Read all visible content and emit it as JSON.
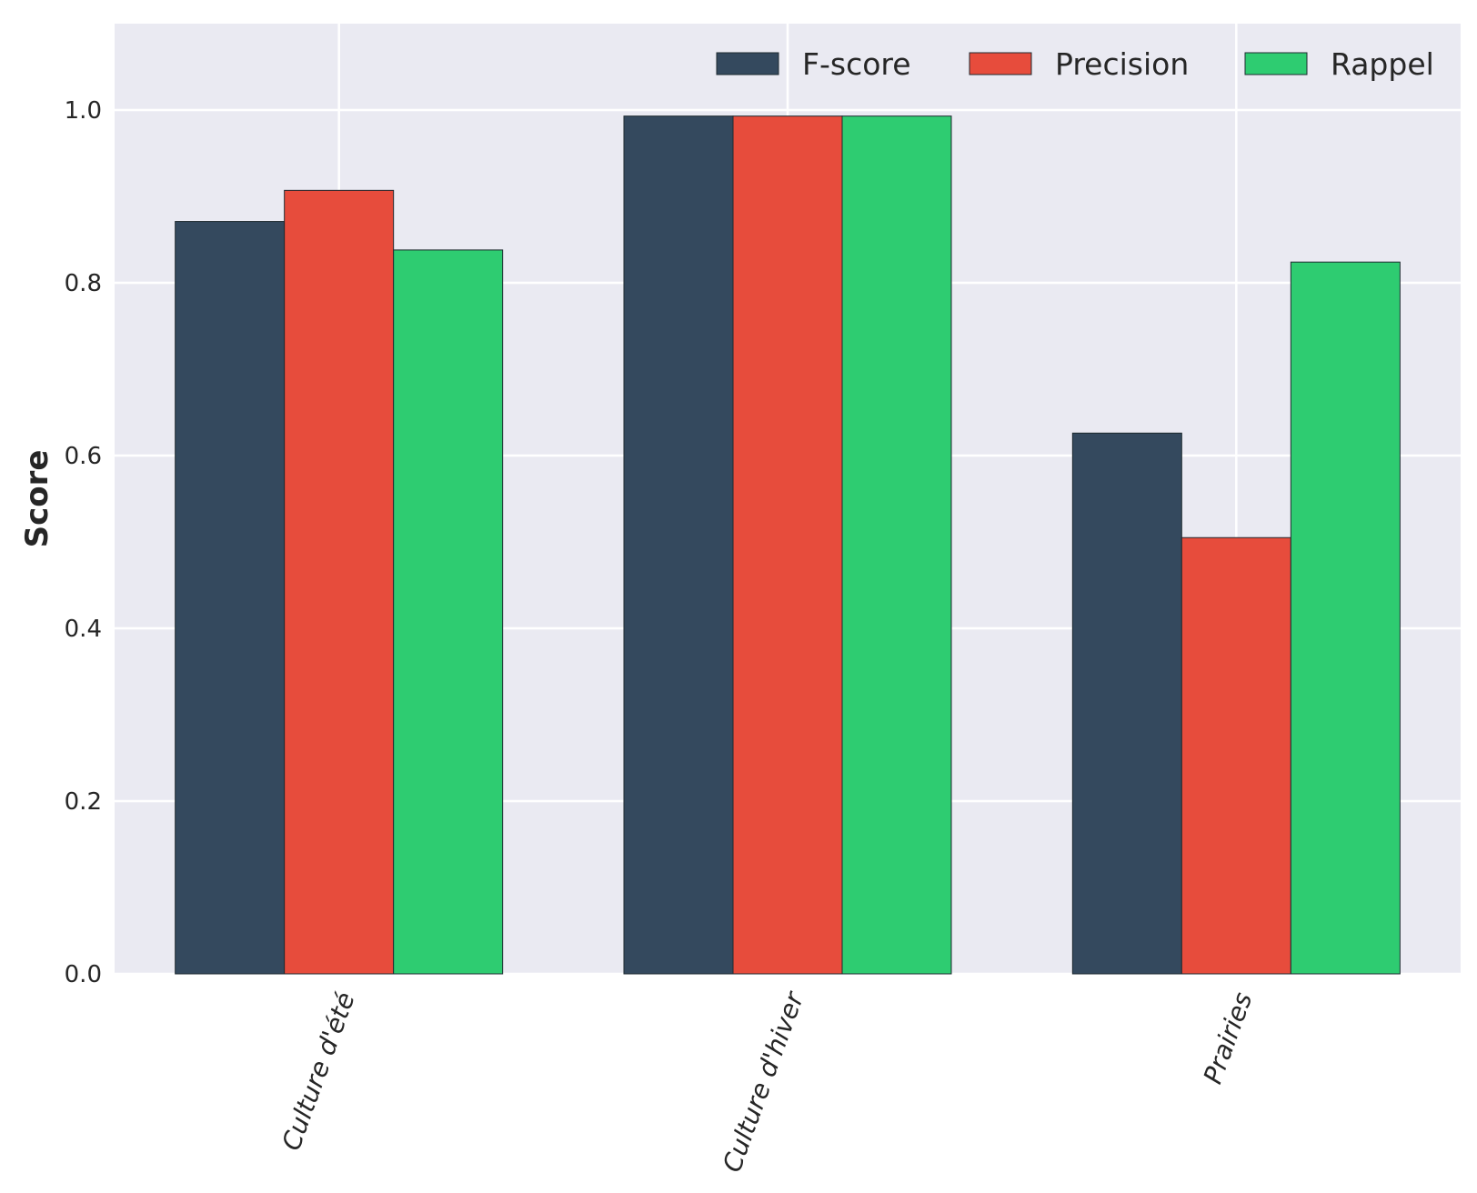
{
  "chart_data": {
    "type": "bar",
    "categories": [
      "Culture d'été",
      "Culture d'hiver",
      "Prairies"
    ],
    "series": [
      {
        "name": "F-score",
        "color": "#34495e",
        "values": [
          0.871,
          0.993,
          0.626
        ]
      },
      {
        "name": "Precision",
        "color": "#e74c3c",
        "values": [
          0.907,
          0.993,
          0.505
        ]
      },
      {
        "name": "Rappel",
        "color": "#2ecc71",
        "values": [
          0.838,
          0.993,
          0.824
        ]
      }
    ],
    "title": "",
    "xlabel": "",
    "ylabel": "Score",
    "ylim": [
      0,
      1.1
    ],
    "yticks": [
      "0.0",
      "0.2",
      "0.4",
      "0.6",
      "0.8",
      "1.0"
    ],
    "grid": true,
    "legend_position": "top-right",
    "background_color": "#eaeaf2"
  }
}
